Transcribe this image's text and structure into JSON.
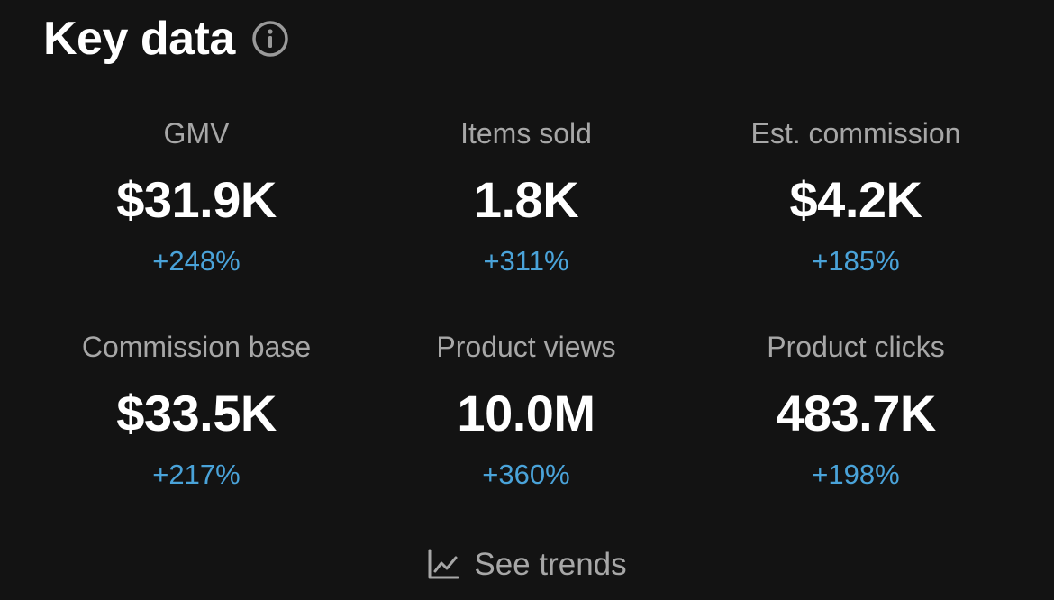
{
  "header": {
    "title": "Key data",
    "info_icon": "info-circle-icon"
  },
  "metrics": [
    {
      "label": "GMV",
      "value": "$31.9K",
      "change": "+248%"
    },
    {
      "label": "Items sold",
      "value": "1.8K",
      "change": "+311%"
    },
    {
      "label": "Est. commission",
      "value": "$4.2K",
      "change": "+185%"
    },
    {
      "label": "Commission base",
      "value": "$33.5K",
      "change": "+217%"
    },
    {
      "label": "Product views",
      "value": "10.0M",
      "change": "+360%"
    },
    {
      "label": "Product clicks",
      "value": "483.7K",
      "change": "+198%"
    }
  ],
  "footer": {
    "see_trends_label": "See trends",
    "trend_icon": "line-chart-icon"
  },
  "colors": {
    "background": "#131313",
    "title": "#ffffff",
    "label": "#a7a7a7",
    "value": "#ffffff",
    "positive_change": "#4aa3d9"
  }
}
